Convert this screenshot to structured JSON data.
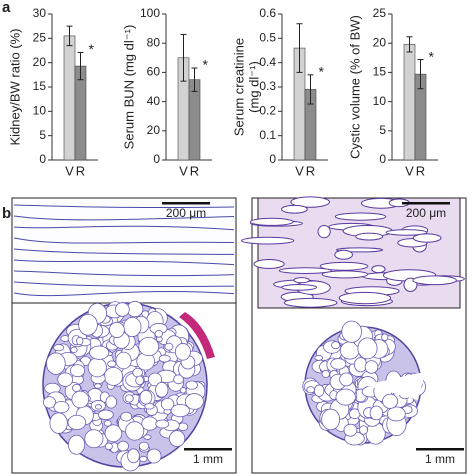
{
  "panel_labels": [
    "a",
    "b"
  ],
  "scale_bars": [
    "200 μm",
    "200 μm",
    "1 mm",
    "1 mm"
  ],
  "chart_data": [
    {
      "type": "bar",
      "y_label": "Kidney/BW ratio (%)",
      "categories": [
        "V",
        "R"
      ],
      "values": [
        25.5,
        19.3
      ],
      "errors": [
        2.0,
        2.8
      ],
      "colors": [
        "#d2d2d2",
        "#8c8c8c"
      ],
      "annotation": "*",
      "ylim": [
        0,
        30
      ],
      "yticks": [
        0,
        5,
        10,
        15,
        20,
        25,
        30
      ]
    },
    {
      "type": "bar",
      "y_label": "Serum BUN (mg dl⁻¹)",
      "categories": [
        "V",
        "R"
      ],
      "values": [
        70,
        55
      ],
      "errors": [
        16,
        8
      ],
      "colors": [
        "#d2d2d2",
        "#8c8c8c"
      ],
      "annotation": "*",
      "ylim": [
        0,
        100
      ],
      "yticks": [
        0,
        20,
        40,
        60,
        80,
        100
      ]
    },
    {
      "type": "bar",
      "y_label": [
        "Serum creatinine",
        "(mg dl⁻¹)"
      ],
      "categories": [
        "V",
        "R"
      ],
      "values": [
        0.46,
        0.29
      ],
      "errors": [
        0.1,
        0.06
      ],
      "colors": [
        "#d2d2d2",
        "#8c8c8c"
      ],
      "annotation": "*",
      "ylim": [
        0,
        0.6
      ],
      "yticks": [
        0,
        0.1,
        0.2,
        0.3,
        0.4,
        0.5,
        0.6
      ]
    },
    {
      "type": "bar",
      "y_label": "Cystic volume (% of BW)",
      "categories": [
        "V",
        "R"
      ],
      "values": [
        19.8,
        14.7
      ],
      "errors": [
        1.3,
        2.5
      ],
      "colors": [
        "#d2d2d2",
        "#8c8c8c"
      ],
      "annotation": "*",
      "ylim": [
        0,
        25
      ],
      "yticks": [
        0,
        5,
        10,
        15,
        20,
        25
      ]
    }
  ]
}
